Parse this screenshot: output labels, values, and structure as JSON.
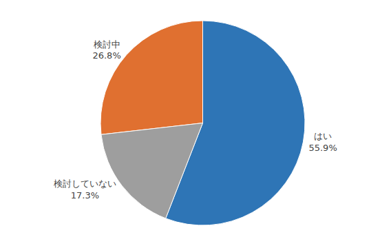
{
  "chart_data": {
    "type": "pie",
    "categories": [
      "はい",
      "検討中",
      "検討していない"
    ],
    "values": [
      55.9,
      26.8,
      17.3
    ],
    "value_labels": [
      "55.9%",
      "26.8%",
      "17.3%"
    ],
    "colors": [
      "#2E75B6",
      "#E07030",
      "#9E9E9E"
    ],
    "data_labels": true
  }
}
